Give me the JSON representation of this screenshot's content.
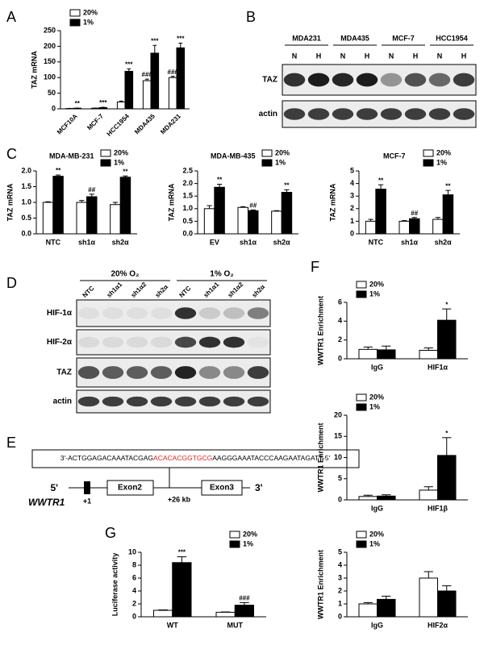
{
  "panel_labels": [
    "A",
    "B",
    "C",
    "D",
    "E",
    "F",
    "G"
  ],
  "blot_b": {
    "cell_lines": [
      "MDA231",
      "MDA435",
      "MCF-7",
      "HCC1954"
    ],
    "lanes": [
      "N",
      "H",
      "N",
      "H",
      "N",
      "H",
      "N",
      "H"
    ],
    "rows": [
      "TAZ",
      "actin"
    ]
  },
  "blot_d": {
    "conditions": [
      "20% O₂",
      "1% O₂"
    ],
    "lanes": [
      "NTC",
      "sh1α1",
      "sh1α2",
      "sh2α",
      "NTC",
      "sh1α1",
      "sh1α2",
      "sh2α"
    ],
    "rows": [
      "HIF-1α",
      "HIF-2α",
      "TAZ",
      "actin"
    ]
  },
  "diagram": {
    "sequence_left": "3'-ACTGGAGACAAATACGAG",
    "sequence_motif": "ACACACGGTGCG",
    "sequence_right": "AAGGGAAATACCCAAGAATAGATT-5'",
    "five_prime": "5'",
    "three_prime": "3'",
    "exon2": "Exon2",
    "exon3": "Exon3",
    "distance": "+26 kb",
    "tss": "+1",
    "gene": "WWTR1"
  },
  "chart_data": [
    {
      "type": "bar",
      "y_label": "TAZ mRNA",
      "categories": [
        "MCF10A",
        "MCF-7",
        "HCC1954",
        "MDA435",
        "MDA231"
      ],
      "series": [
        {
          "name": "20%",
          "color": "#ffffff",
          "values": [
            1,
            2,
            22,
            90,
            100
          ],
          "errors": [
            0.5,
            0.5,
            3,
            5,
            4
          ],
          "markers": [
            null,
            null,
            null,
            "###",
            "###"
          ]
        },
        {
          "name": "1%",
          "color": "#000000",
          "values": [
            2,
            4,
            120,
            178,
            195
          ],
          "errors": [
            0.5,
            1,
            8,
            25,
            15
          ],
          "markers": [
            "**",
            "***",
            "***",
            "***",
            "***"
          ]
        }
      ],
      "ylim": [
        0,
        250
      ],
      "yticks": [
        0,
        50,
        100,
        150,
        200,
        250
      ],
      "legend": "upper left"
    },
    {
      "type": "bar",
      "title": "MDA-MB-231",
      "y_label": "TAZ mRNA",
      "categories": [
        "NTC",
        "sh1α",
        "sh2α"
      ],
      "series": [
        {
          "name": "20%",
          "color": "#ffffff",
          "values": [
            1.0,
            1.0,
            0.93
          ],
          "errors": [
            0.02,
            0.06,
            0.07
          ],
          "markers": [
            null,
            null,
            null
          ]
        },
        {
          "name": "1%",
          "color": "#000000",
          "values": [
            1.83,
            1.18,
            1.8
          ],
          "errors": [
            0.04,
            0.08,
            0.04
          ],
          "markers": [
            "**",
            "##",
            "**"
          ]
        }
      ],
      "ylim": [
        0,
        2.0
      ],
      "yticks": [
        {
          "value": 0,
          "label": "0.0"
        },
        0.5,
        {
          "value": 1,
          "label": "1.0"
        },
        1.5,
        {
          "value": 2,
          "label": "2.0"
        }
      ],
      "legend": "upper right"
    },
    {
      "type": "bar",
      "title": "MDA-MB-435",
      "y_label": "TAZ mRNA",
      "categories": [
        "EV",
        "sh1α",
        "sh2α"
      ],
      "series": [
        {
          "name": "20%",
          "color": "#ffffff",
          "values": [
            1.0,
            1.05,
            0.9
          ],
          "errors": [
            0.12,
            0.03,
            0.02
          ],
          "markers": [
            null,
            null,
            null
          ]
        },
        {
          "name": "1%",
          "color": "#000000",
          "values": [
            1.85,
            0.92,
            1.65
          ],
          "errors": [
            0.12,
            0.03,
            0.1
          ],
          "markers": [
            "**",
            "##",
            "**"
          ]
        }
      ],
      "ylim": [
        0,
        2.5
      ],
      "yticks": [
        {
          "value": 0,
          "label": "0.0"
        },
        0.5,
        {
          "value": 1,
          "label": "1.0"
        },
        1.5,
        {
          "value": 2,
          "label": "2.0"
        },
        2.5
      ],
      "legend": "upper right"
    },
    {
      "type": "bar",
      "title": "MCF-7",
      "y_label": "TAZ mRNA",
      "categories": [
        "NTC",
        "sh1α",
        "sh2α"
      ],
      "series": [
        {
          "name": "20%",
          "color": "#ffffff",
          "values": [
            1.0,
            1.0,
            1.15
          ],
          "errors": [
            0.15,
            0.05,
            0.15
          ],
          "markers": [
            null,
            null,
            null
          ]
        },
        {
          "name": "1%",
          "color": "#000000",
          "values": [
            3.55,
            1.2,
            3.1
          ],
          "errors": [
            0.35,
            0.1,
            0.35
          ],
          "markers": [
            "**",
            "##",
            "**"
          ]
        }
      ],
      "ylim": [
        0,
        5
      ],
      "yticks": [
        0,
        1,
        2,
        3,
        4,
        5
      ],
      "legend": "upper right"
    },
    {
      "type": "bar",
      "y_label": "WWTR1 Enrichment",
      "categories": [
        "IgG",
        "HIF1α"
      ],
      "series": [
        {
          "name": "20%",
          "color": "#ffffff",
          "values": [
            1.0,
            0.9
          ],
          "errors": [
            0.25,
            0.25
          ],
          "markers": [
            null,
            null
          ]
        },
        {
          "name": "1%",
          "color": "#000000",
          "values": [
            0.95,
            4.1
          ],
          "errors": [
            0.4,
            1.2
          ],
          "markers": [
            null,
            "*"
          ]
        }
      ],
      "ylim": [
        0,
        6
      ],
      "yticks": [
        0,
        2,
        4,
        6
      ],
      "legend": "upper left"
    },
    {
      "type": "bar",
      "y_label": "WWTR1 Enrichment",
      "categories": [
        "IgG",
        "HIF1β"
      ],
      "series": [
        {
          "name": "20%",
          "color": "#ffffff",
          "values": [
            0.8,
            2.3
          ],
          "errors": [
            0.3,
            0.8
          ],
          "markers": [
            null,
            null
          ]
        },
        {
          "name": "1%",
          "color": "#000000",
          "values": [
            0.9,
            10.5
          ],
          "errors": [
            0.3,
            4.2
          ],
          "markers": [
            null,
            "*"
          ]
        }
      ],
      "ylim": [
        0,
        20
      ],
      "yticks": [
        0,
        5,
        10,
        15,
        20
      ],
      "legend": "upper left"
    },
    {
      "type": "bar",
      "y_label": "WWTR1 Enrichment",
      "categories": [
        "IgG",
        "HIF2α"
      ],
      "series": [
        {
          "name": "20%",
          "color": "#ffffff",
          "values": [
            1.0,
            3.0
          ],
          "errors": [
            0.1,
            0.5
          ],
          "markers": [
            null,
            null
          ]
        },
        {
          "name": "1%",
          "color": "#000000",
          "values": [
            1.35,
            2.0
          ],
          "errors": [
            0.25,
            0.4
          ],
          "markers": [
            null,
            null
          ]
        }
      ],
      "ylim": [
        0,
        5
      ],
      "yticks": [
        0,
        1,
        2,
        3,
        4,
        5
      ],
      "legend": "upper left"
    },
    {
      "type": "bar",
      "y_label": "Luciferase activity",
      "categories": [
        "WT",
        "MUT"
      ],
      "series": [
        {
          "name": "20%",
          "color": "#ffffff",
          "values": [
            1.0,
            0.7
          ],
          "errors": [
            0.07,
            0.05
          ],
          "markers": [
            null,
            null
          ]
        },
        {
          "name": "1%",
          "color": "#000000",
          "values": [
            8.4,
            1.8
          ],
          "errors": [
            0.9,
            0.4
          ],
          "markers": [
            "***",
            "###"
          ]
        }
      ],
      "ylim": [
        0,
        10
      ],
      "yticks": [
        0,
        2,
        4,
        6,
        8,
        10
      ],
      "legend": "upper right"
    }
  ]
}
